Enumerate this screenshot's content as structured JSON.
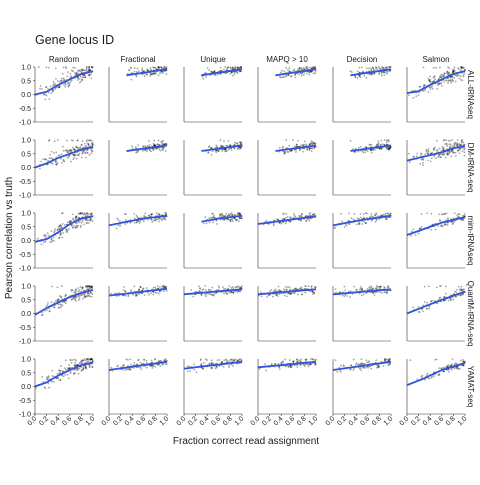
{
  "chart_data": {
    "type": "scatter",
    "title": "Gene locus ID",
    "xlabel": "Fraction correct read assignment",
    "ylabel": "Pearson correlation vs truth",
    "columns": [
      "Random",
      "Fractional",
      "Unique",
      "MAPQ > 10",
      "Decision",
      "Salmon"
    ],
    "rows": [
      "ALL-tRNAseq",
      "DM-tRNA-seq",
      "mim-tRNAseq",
      "QuantM-tRNA-seq",
      "YAMAT-seq"
    ],
    "xlim": [
      0.0,
      1.0
    ],
    "ylim": [
      -1.0,
      1.0
    ],
    "xticks": [
      "0.0",
      "0.2",
      "0.4",
      "0.6",
      "0.8",
      "1.0"
    ],
    "yticks": [
      "-1.0",
      "-0.5",
      "0.0",
      "0.5",
      "1.0"
    ],
    "grid": false,
    "point_color": "#000000",
    "trend_color": "#3355dd",
    "trend_lines": [
      [
        [
          [
            0.0,
            0.0
          ],
          [
            0.2,
            0.1
          ],
          [
            0.4,
            0.35
          ],
          [
            0.6,
            0.55
          ],
          [
            0.8,
            0.75
          ],
          [
            1.0,
            0.85
          ]
        ],
        [
          [
            0.3,
            0.7
          ],
          [
            1.0,
            0.92
          ]
        ],
        [
          [
            0.3,
            0.7
          ],
          [
            1.0,
            0.92
          ]
        ],
        [
          [
            0.3,
            0.7
          ],
          [
            1.0,
            0.92
          ]
        ],
        [
          [
            0.3,
            0.7
          ],
          [
            1.0,
            0.92
          ]
        ],
        [
          [
            0.0,
            0.05
          ],
          [
            0.2,
            0.12
          ],
          [
            0.4,
            0.35
          ],
          [
            0.6,
            0.55
          ],
          [
            0.8,
            0.75
          ],
          [
            1.0,
            0.85
          ]
        ]
      ],
      [
        [
          [
            0.0,
            0.0
          ],
          [
            0.2,
            0.15
          ],
          [
            0.4,
            0.35
          ],
          [
            0.6,
            0.5
          ],
          [
            0.8,
            0.65
          ],
          [
            1.0,
            0.75
          ]
        ],
        [
          [
            0.3,
            0.6
          ],
          [
            1.0,
            0.8
          ]
        ],
        [
          [
            0.3,
            0.6
          ],
          [
            1.0,
            0.8
          ]
        ],
        [
          [
            0.3,
            0.6
          ],
          [
            1.0,
            0.8
          ]
        ],
        [
          [
            0.3,
            0.6
          ],
          [
            1.0,
            0.8
          ]
        ],
        [
          [
            0.0,
            0.25
          ],
          [
            0.2,
            0.35
          ],
          [
            0.4,
            0.45
          ],
          [
            0.6,
            0.55
          ],
          [
            0.8,
            0.7
          ],
          [
            1.0,
            0.78
          ]
        ]
      ],
      [
        [
          [
            0.0,
            -0.05
          ],
          [
            0.2,
            0.05
          ],
          [
            0.4,
            0.3
          ],
          [
            0.6,
            0.6
          ],
          [
            0.8,
            0.8
          ],
          [
            1.0,
            0.88
          ]
        ],
        [
          [
            0.0,
            0.55
          ],
          [
            0.3,
            0.68
          ],
          [
            0.6,
            0.8
          ],
          [
            1.0,
            0.9
          ]
        ],
        [
          [
            0.3,
            0.68
          ],
          [
            0.6,
            0.8
          ],
          [
            1.0,
            0.9
          ]
        ],
        [
          [
            0.0,
            0.6
          ],
          [
            1.0,
            0.88
          ]
        ],
        [
          [
            0.0,
            0.55
          ],
          [
            0.5,
            0.75
          ],
          [
            1.0,
            0.9
          ]
        ],
        [
          [
            0.0,
            0.2
          ],
          [
            0.3,
            0.42
          ],
          [
            0.6,
            0.65
          ],
          [
            1.0,
            0.85
          ]
        ]
      ],
      [
        [
          [
            0.0,
            -0.05
          ],
          [
            0.2,
            0.2
          ],
          [
            0.4,
            0.4
          ],
          [
            0.6,
            0.6
          ],
          [
            0.8,
            0.75
          ],
          [
            1.0,
            0.85
          ]
        ],
        [
          [
            0.0,
            0.65
          ],
          [
            1.0,
            0.9
          ]
        ],
        [
          [
            0.0,
            0.7
          ],
          [
            1.0,
            0.88
          ]
        ],
        [
          [
            0.0,
            0.7
          ],
          [
            1.0,
            0.88
          ]
        ],
        [
          [
            0.0,
            0.7
          ],
          [
            1.0,
            0.88
          ]
        ],
        [
          [
            0.0,
            0.0
          ],
          [
            0.3,
            0.25
          ],
          [
            0.6,
            0.5
          ],
          [
            1.0,
            0.8
          ]
        ]
      ],
      [
        [
          [
            0.0,
            0.0
          ],
          [
            0.2,
            0.15
          ],
          [
            0.4,
            0.4
          ],
          [
            0.6,
            0.6
          ],
          [
            0.8,
            0.78
          ],
          [
            1.0,
            0.88
          ]
        ],
        [
          [
            0.0,
            0.6
          ],
          [
            1.0,
            0.9
          ]
        ],
        [
          [
            0.0,
            0.65
          ],
          [
            1.0,
            0.9
          ]
        ],
        [
          [
            0.0,
            0.7
          ],
          [
            1.0,
            0.9
          ]
        ],
        [
          [
            0.0,
            0.6
          ],
          [
            1.0,
            0.9
          ]
        ],
        [
          [
            0.0,
            0.05
          ],
          [
            0.3,
            0.3
          ],
          [
            0.6,
            0.6
          ],
          [
            1.0,
            0.85
          ]
        ]
      ]
    ]
  }
}
